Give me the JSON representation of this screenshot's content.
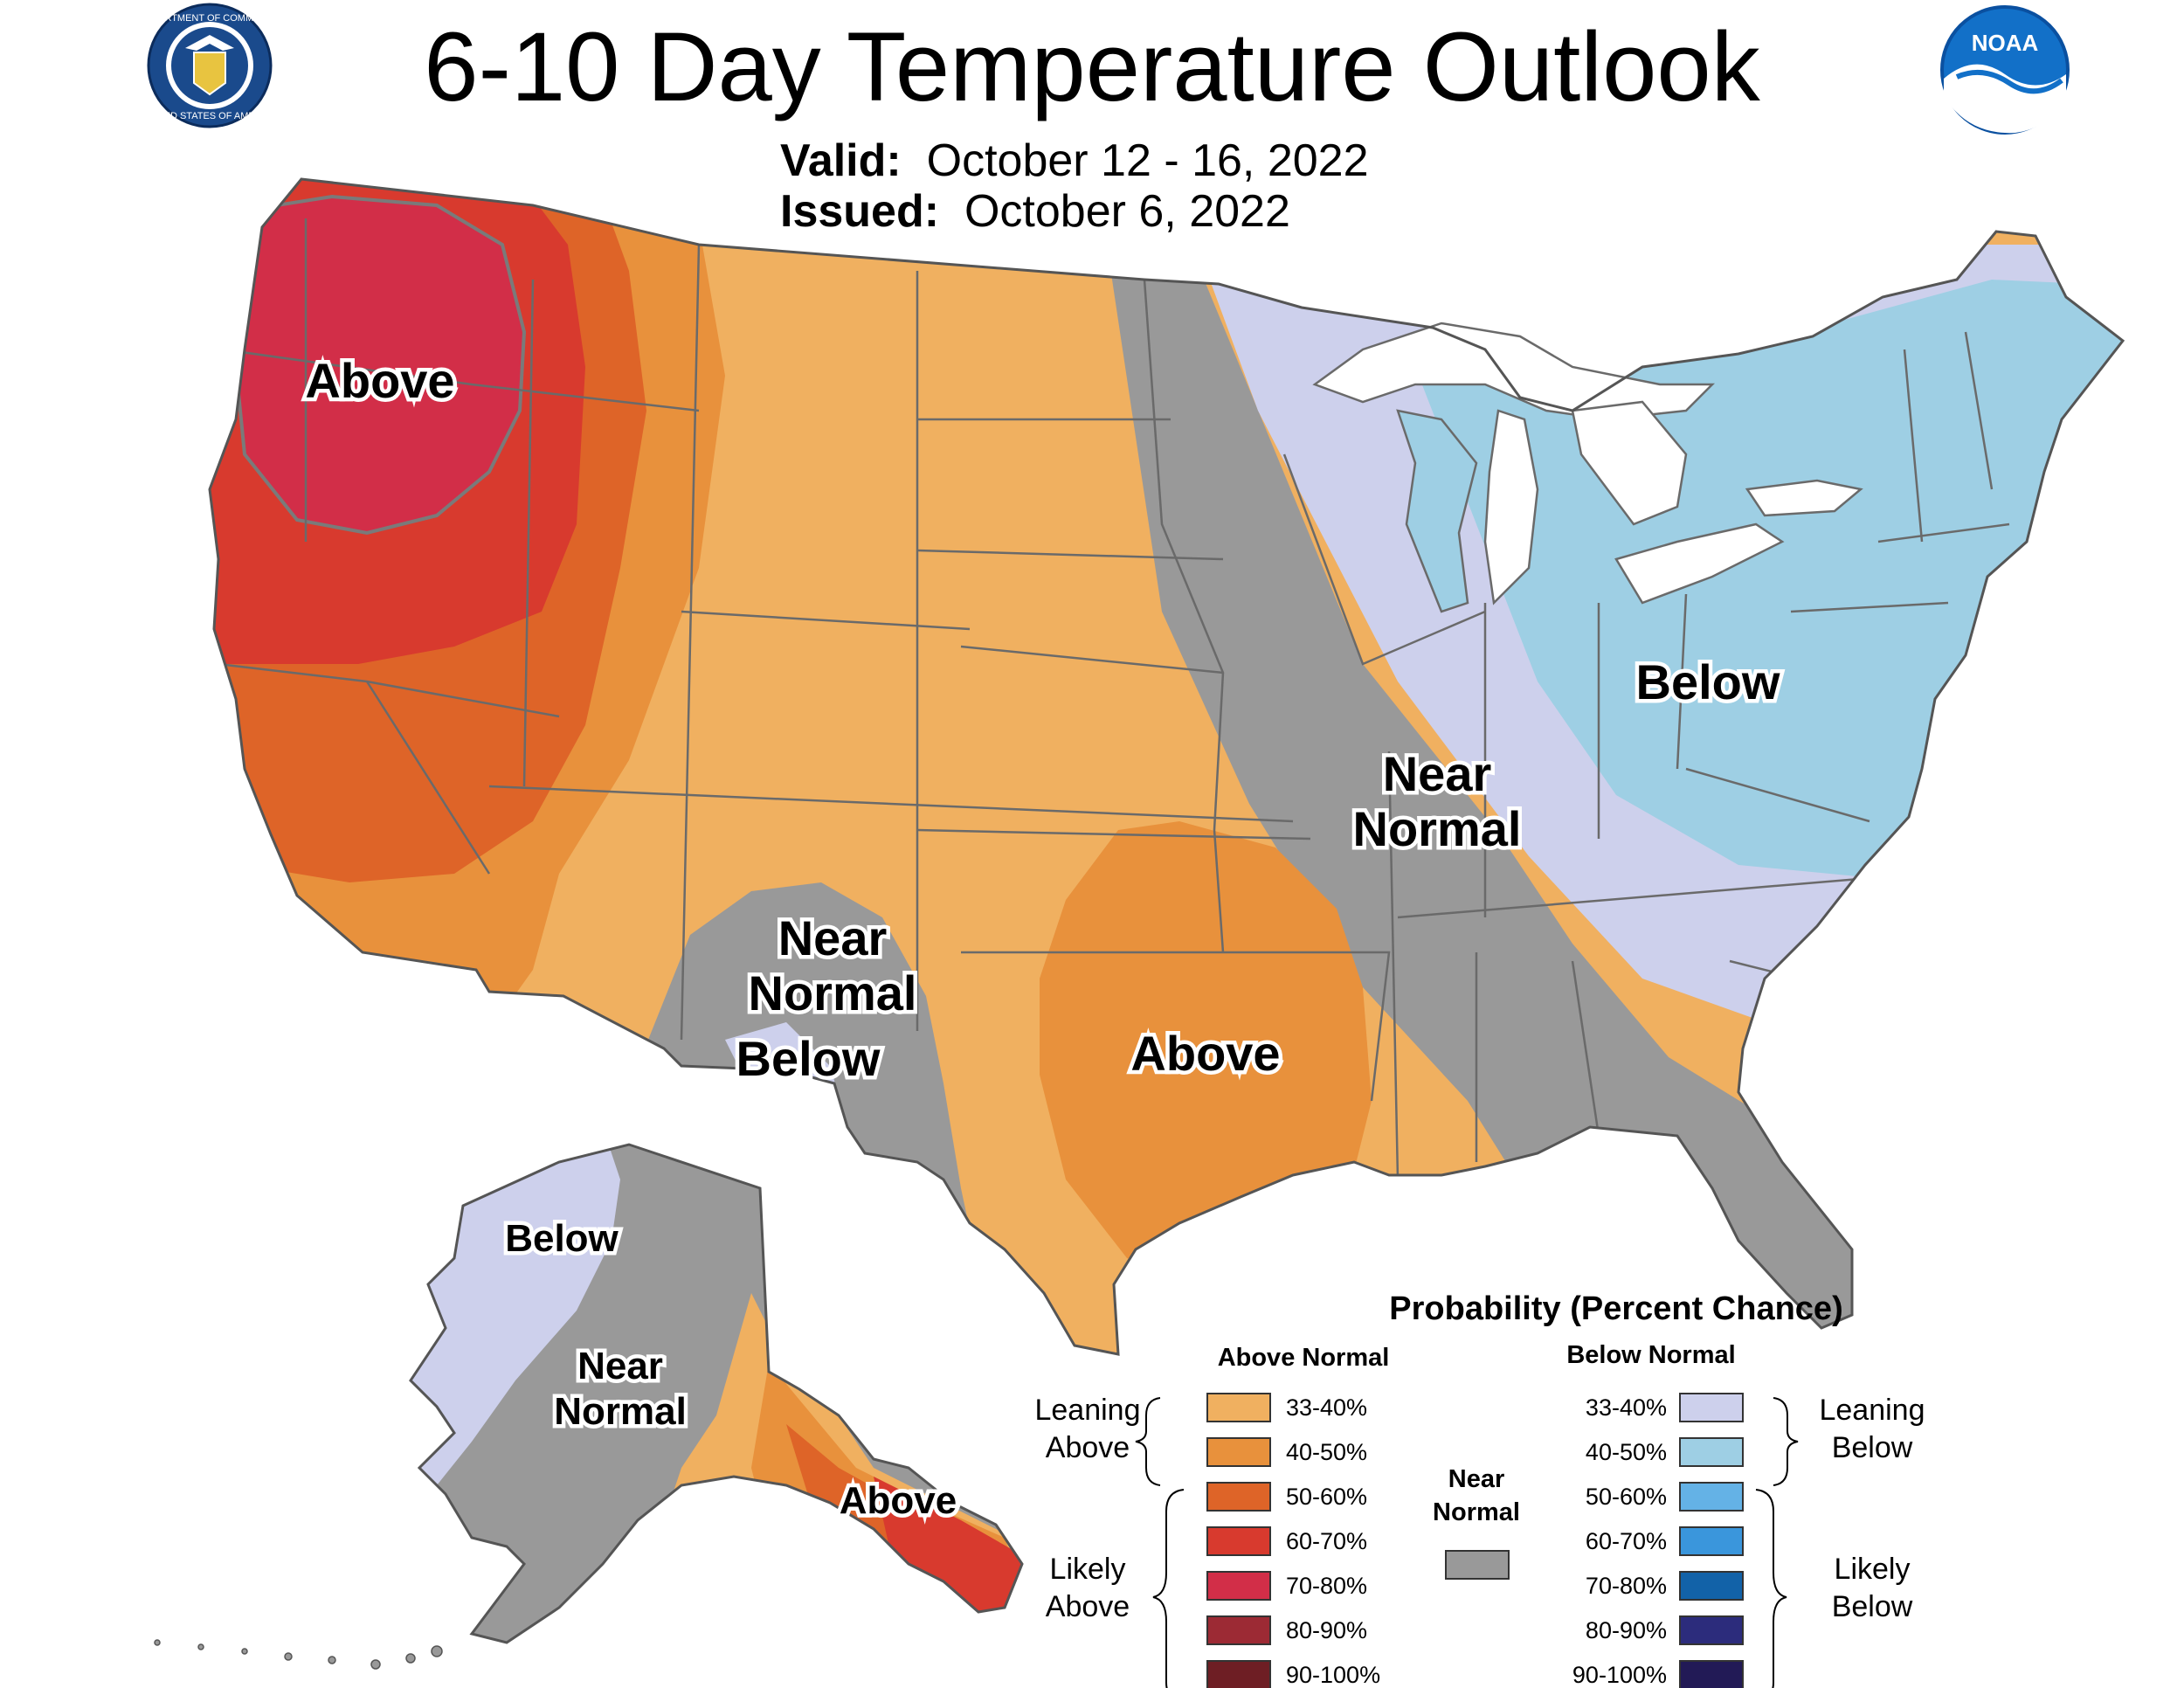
{
  "header": {
    "title": "6-10 Day Temperature Outlook",
    "valid_label": "Valid:",
    "valid_value": "October 12 - 16, 2022",
    "issued_label": "Issued:",
    "issued_value": "October 6, 2022"
  },
  "logos": {
    "commerce_seal": {
      "icon": "department-of-commerce-seal",
      "text_top": "DEPARTMENT OF COMMERCE",
      "text_bottom": "UNITED STATES OF AMERICA"
    },
    "noaa": {
      "icon": "noaa-logo",
      "text": "NOAA"
    }
  },
  "map_labels": {
    "nw_above": "Above",
    "east_below": "Below",
    "central_near": "Near",
    "central_normal": "Normal",
    "sw_near": "Near",
    "sw_normal": "Normal",
    "sw_below": "Below",
    "south_above": "Above",
    "ak_below": "Below",
    "ak_near": "Near",
    "ak_normal": "Normal",
    "ak_above": "Above"
  },
  "legend": {
    "title": "Probability (Percent Chance)",
    "above_header": "Above Normal",
    "below_header": "Below Normal",
    "near_header_line1": "Near",
    "near_header_line2": "Normal",
    "leaning_above": [
      "Leaning",
      "Above"
    ],
    "likely_above": [
      "Likely",
      "Above"
    ],
    "leaning_below": [
      "Leaning",
      "Below"
    ],
    "likely_below": [
      "Likely",
      "Below"
    ],
    "above_items": [
      {
        "label": "33-40%",
        "color": "#f0b060"
      },
      {
        "label": "40-50%",
        "color": "#e8913c"
      },
      {
        "label": "50-60%",
        "color": "#de6428"
      },
      {
        "label": "60-70%",
        "color": "#d83a2e"
      },
      {
        "label": "70-80%",
        "color": "#d22e48"
      },
      {
        "label": "80-90%",
        "color": "#9c2a34"
      },
      {
        "label": "90-100%",
        "color": "#6e1e24"
      }
    ],
    "below_items": [
      {
        "label": "33-40%",
        "color": "#cdd0ec"
      },
      {
        "label": "40-50%",
        "color": "#9ecfe4"
      },
      {
        "label": "50-60%",
        "color": "#64b2e6"
      },
      {
        "label": "60-70%",
        "color": "#3a96dc"
      },
      {
        "label": "70-80%",
        "color": "#1262a8"
      },
      {
        "label": "80-90%",
        "color": "#2c2c7c"
      },
      {
        "label": "90-100%",
        "color": "#221a56"
      }
    ],
    "near_color": "#999999"
  }
}
